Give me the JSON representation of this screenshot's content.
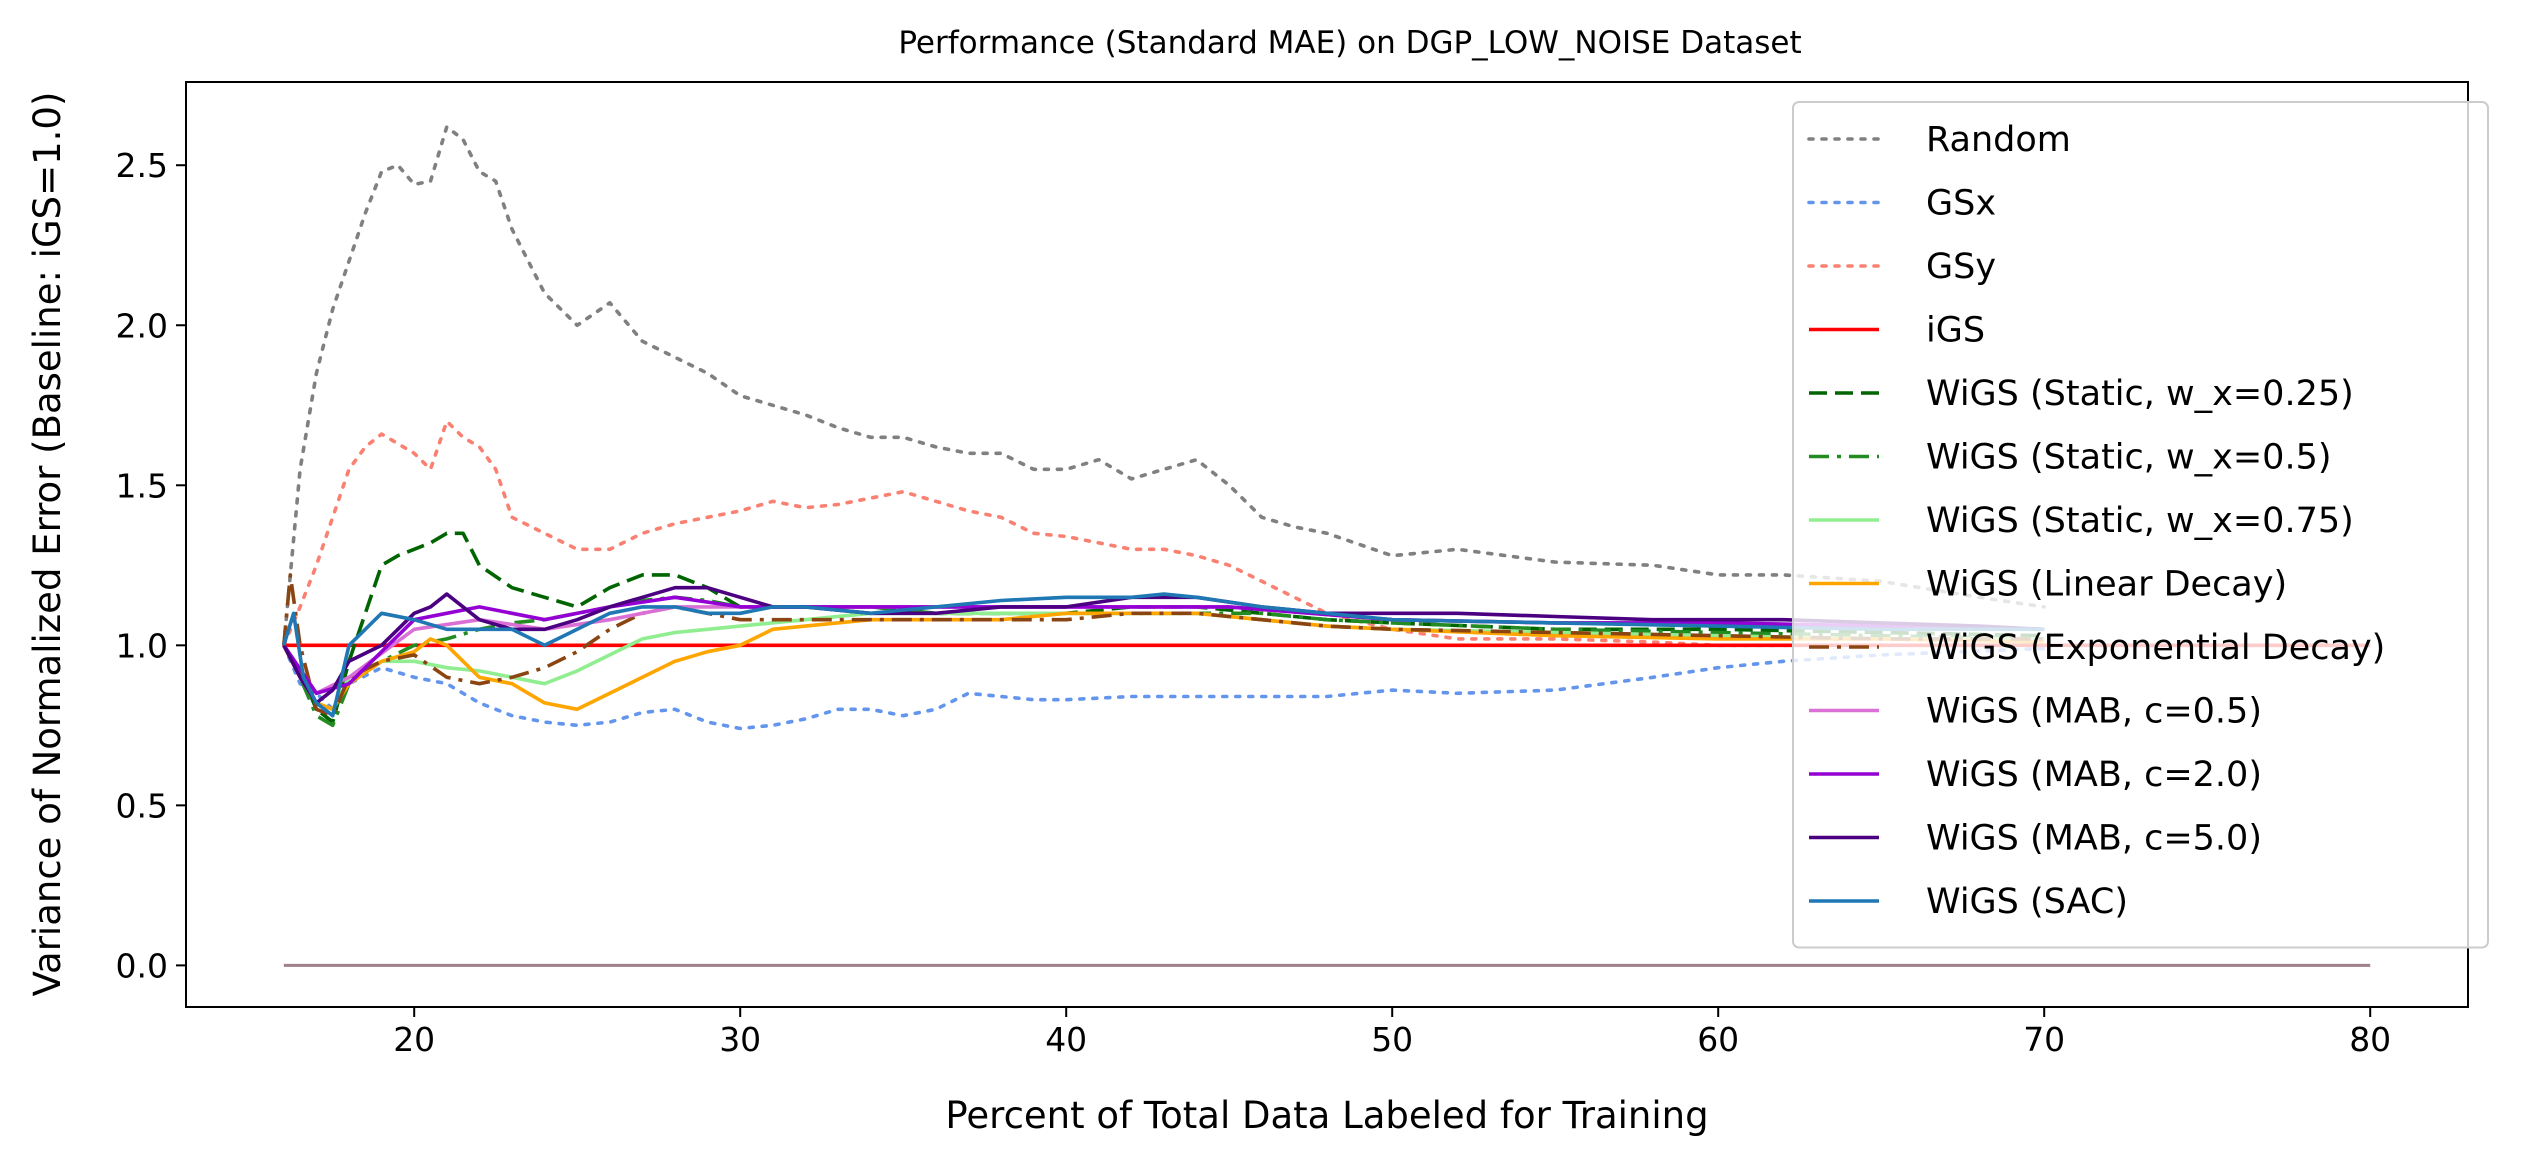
{
  "chart_data": {
    "type": "line",
    "title": "Performance (Standard MAE) on DGP_LOW_NOISE Dataset",
    "xlabel": "Percent of Total Data Labeled for Training",
    "ylabel": "Variance of Normalized Error (Baseline: iGS=1.0)",
    "xlim": [
      13,
      83
    ],
    "ylim": [
      -0.13,
      2.76
    ],
    "xticks": [
      20,
      30,
      40,
      50,
      60,
      70,
      80
    ],
    "xtick_labels": [
      "20",
      "30",
      "40",
      "50",
      "60",
      "70",
      "80"
    ],
    "yticks": [
      0.0,
      0.5,
      1.0,
      1.5,
      2.0,
      2.5
    ],
    "ytick_labels": [
      "0.0",
      "0.5",
      "1.0",
      "1.5",
      "2.0",
      "2.5"
    ],
    "grid": false,
    "legend_position": "top-right",
    "zero_line": {
      "x": [
        16,
        80
      ],
      "y": 0.0,
      "color": "#a0808a"
    },
    "series": [
      {
        "name": "Random",
        "color": "#808080",
        "dash": "dotted",
        "x": [
          16,
          16.5,
          17,
          17.5,
          18,
          18.5,
          19,
          19.5,
          20,
          20.5,
          21,
          21.5,
          22,
          22.5,
          23,
          24,
          25,
          26,
          27,
          28,
          29,
          30,
          31,
          32,
          33,
          34,
          35,
          36,
          37,
          38,
          39,
          40,
          41,
          42,
          43,
          44,
          45,
          46,
          47,
          48,
          50,
          52,
          55,
          58,
          60,
          62,
          65,
          68,
          70
        ],
        "y": [
          1.0,
          1.55,
          1.85,
          2.05,
          2.2,
          2.35,
          2.48,
          2.5,
          2.44,
          2.45,
          2.62,
          2.58,
          2.48,
          2.45,
          2.3,
          2.1,
          2.0,
          2.07,
          1.95,
          1.9,
          1.85,
          1.78,
          1.75,
          1.72,
          1.68,
          1.65,
          1.65,
          1.62,
          1.6,
          1.6,
          1.55,
          1.55,
          1.58,
          1.52,
          1.55,
          1.58,
          1.5,
          1.4,
          1.37,
          1.35,
          1.28,
          1.3,
          1.26,
          1.25,
          1.22,
          1.22,
          1.2,
          1.15,
          1.12
        ]
      },
      {
        "name": "GSx",
        "color": "#6495ed",
        "dash": "dotted",
        "x": [
          16,
          16.5,
          17,
          17.5,
          18,
          19,
          20,
          21,
          22,
          23,
          24,
          25,
          26,
          27,
          28,
          29,
          30,
          31,
          32,
          33,
          34,
          35,
          36,
          37,
          38,
          39,
          40,
          42,
          44,
          46,
          48,
          50,
          52,
          55,
          58,
          60,
          62,
          65,
          70
        ],
        "y": [
          1.0,
          0.88,
          0.85,
          0.8,
          0.88,
          0.93,
          0.9,
          0.88,
          0.82,
          0.78,
          0.76,
          0.75,
          0.76,
          0.79,
          0.8,
          0.76,
          0.74,
          0.75,
          0.77,
          0.8,
          0.8,
          0.78,
          0.8,
          0.85,
          0.84,
          0.83,
          0.83,
          0.84,
          0.84,
          0.84,
          0.84,
          0.86,
          0.85,
          0.86,
          0.9,
          0.93,
          0.95,
          0.97,
          0.99
        ]
      },
      {
        "name": "GSy",
        "color": "#fa8072",
        "dash": "dotted",
        "x": [
          16,
          16.5,
          17,
          17.5,
          18,
          18.5,
          19,
          20,
          20.5,
          21,
          21.5,
          22,
          22.5,
          23,
          24,
          25,
          26,
          27,
          28,
          29,
          30,
          31,
          32,
          33,
          34,
          35,
          36,
          37,
          38,
          39,
          40,
          41,
          42,
          43,
          44,
          45,
          46,
          47,
          48,
          50,
          52,
          55,
          58,
          60,
          62,
          65
        ],
        "y": [
          1.0,
          1.12,
          1.25,
          1.4,
          1.55,
          1.62,
          1.66,
          1.6,
          1.55,
          1.7,
          1.65,
          1.62,
          1.55,
          1.4,
          1.35,
          1.3,
          1.3,
          1.35,
          1.38,
          1.4,
          1.42,
          1.45,
          1.43,
          1.44,
          1.46,
          1.48,
          1.45,
          1.42,
          1.4,
          1.35,
          1.34,
          1.32,
          1.3,
          1.3,
          1.28,
          1.25,
          1.2,
          1.15,
          1.1,
          1.05,
          1.02,
          1.02,
          1.01,
          1.0,
          1.0,
          1.0
        ]
      },
      {
        "name": "iGS",
        "color": "#ff0000",
        "dash": "solid",
        "x": [
          16,
          80
        ],
        "y": [
          1.0,
          1.0
        ]
      },
      {
        "name": "WiGS (Static, w_x=0.25)",
        "color": "#006400",
        "dash": "dashed",
        "x": [
          16,
          16.5,
          17,
          17.5,
          18,
          18.5,
          19,
          19.5,
          20,
          20.5,
          21,
          21.5,
          22,
          23,
          24,
          25,
          26,
          27,
          28,
          29,
          30,
          32,
          34,
          36,
          38,
          40,
          42,
          44,
          46,
          48,
          50,
          55,
          60,
          65,
          70
        ],
        "y": [
          1.0,
          0.92,
          0.8,
          0.76,
          0.95,
          1.1,
          1.25,
          1.28,
          1.3,
          1.32,
          1.35,
          1.35,
          1.25,
          1.18,
          1.15,
          1.12,
          1.18,
          1.22,
          1.22,
          1.18,
          1.12,
          1.12,
          1.12,
          1.1,
          1.1,
          1.1,
          1.12,
          1.12,
          1.1,
          1.08,
          1.07,
          1.05,
          1.05,
          1.04,
          1.03
        ]
      },
      {
        "name": "WiGS (Static, w_x=0.5)",
        "color": "#228b22",
        "dash": "dashdot",
        "x": [
          16,
          16.5,
          17,
          17.5,
          18,
          19,
          20,
          21,
          22,
          23,
          24,
          25,
          26,
          27,
          28,
          29,
          30,
          32,
          34,
          36,
          38,
          40,
          42,
          44,
          46,
          48,
          50,
          55,
          60,
          65,
          70
        ],
        "y": [
          1.0,
          0.9,
          0.78,
          0.75,
          0.88,
          0.95,
          1.0,
          1.02,
          1.05,
          1.07,
          1.08,
          1.1,
          1.12,
          1.14,
          1.15,
          1.14,
          1.12,
          1.12,
          1.12,
          1.1,
          1.1,
          1.1,
          1.1,
          1.1,
          1.1,
          1.08,
          1.07,
          1.05,
          1.04,
          1.03,
          1.02
        ]
      },
      {
        "name": "WiGS (Static, w_x=0.75)",
        "color": "#90ee90",
        "dash": "solid",
        "x": [
          16,
          16.5,
          17,
          17.5,
          18,
          19,
          20,
          21,
          22,
          23,
          24,
          25,
          26,
          27,
          28,
          29,
          30,
          32,
          34,
          36,
          38,
          40,
          42,
          44,
          46,
          48,
          50,
          55,
          60,
          65,
          70
        ],
        "y": [
          1.0,
          0.9,
          0.82,
          0.8,
          0.9,
          0.95,
          0.95,
          0.93,
          0.92,
          0.9,
          0.88,
          0.92,
          0.97,
          1.02,
          1.04,
          1.05,
          1.06,
          1.08,
          1.1,
          1.1,
          1.1,
          1.1,
          1.1,
          1.1,
          1.08,
          1.06,
          1.05,
          1.04,
          1.03,
          1.02,
          1.02
        ]
      },
      {
        "name": "WiGS (Linear Decay)",
        "color": "#ffa500",
        "dash": "solid",
        "x": [
          16,
          16.5,
          17,
          17.5,
          18,
          19,
          20,
          20.5,
          21,
          21.5,
          22,
          23,
          24,
          25,
          26,
          27,
          28,
          29,
          30,
          31,
          32,
          34,
          36,
          38,
          40,
          42,
          44,
          46,
          48,
          50,
          55,
          60,
          65,
          70
        ],
        "y": [
          1.0,
          0.9,
          0.82,
          0.8,
          0.88,
          0.95,
          0.98,
          1.02,
          1.0,
          0.95,
          0.9,
          0.88,
          0.82,
          0.8,
          0.85,
          0.9,
          0.95,
          0.98,
          1.0,
          1.05,
          1.06,
          1.08,
          1.08,
          1.08,
          1.1,
          1.1,
          1.1,
          1.08,
          1.06,
          1.05,
          1.03,
          1.02,
          1.02,
          1.01
        ]
      },
      {
        "name": "WiGS (Exponential Decay)",
        "color": "#8b4513",
        "dash": "dashdot",
        "x": [
          16,
          16.2,
          16.5,
          17,
          17.5,
          18,
          19,
          20,
          21,
          22,
          23,
          24,
          25,
          26,
          27,
          28,
          29,
          30,
          32,
          34,
          36,
          38,
          40,
          42,
          44,
          46,
          48,
          50,
          55,
          60,
          65,
          70
        ],
        "y": [
          1.0,
          1.22,
          1.0,
          0.8,
          0.78,
          0.9,
          0.95,
          0.97,
          0.9,
          0.88,
          0.9,
          0.93,
          0.98,
          1.05,
          1.1,
          1.12,
          1.1,
          1.08,
          1.08,
          1.08,
          1.08,
          1.08,
          1.08,
          1.1,
          1.1,
          1.08,
          1.06,
          1.05,
          1.04,
          1.03,
          1.02,
          1.02
        ]
      },
      {
        "name": "WiGS (MAB, c=0.5)",
        "color": "#da70d6",
        "dash": "solid",
        "x": [
          16,
          17,
          18,
          20,
          22,
          24,
          26,
          28,
          30,
          35,
          40,
          45,
          50,
          55,
          60,
          65,
          70
        ],
        "y": [
          1.0,
          0.85,
          0.9,
          1.05,
          1.08,
          1.05,
          1.08,
          1.12,
          1.12,
          1.12,
          1.12,
          1.12,
          1.08,
          1.07,
          1.07,
          1.06,
          1.05
        ]
      },
      {
        "name": "WiGS (MAB, c=2.0)",
        "color": "#9400d3",
        "dash": "solid",
        "x": [
          16,
          17,
          18,
          20,
          22,
          24,
          26,
          28,
          30,
          35,
          40,
          45,
          50,
          55,
          60,
          65,
          70
        ],
        "y": [
          1.0,
          0.85,
          0.88,
          1.08,
          1.12,
          1.08,
          1.12,
          1.15,
          1.12,
          1.12,
          1.12,
          1.12,
          1.08,
          1.07,
          1.07,
          1.06,
          1.05
        ]
      },
      {
        "name": "WiGS (MAB, c=5.0)",
        "color": "#4b0082",
        "dash": "solid",
        "x": [
          16,
          16.5,
          17,
          17.5,
          18,
          19,
          20,
          20.5,
          21,
          21.5,
          22,
          23,
          24,
          25,
          26,
          27,
          28,
          29,
          30,
          31,
          32,
          34,
          36,
          38,
          40,
          42,
          43,
          44,
          46,
          48,
          50,
          52,
          55,
          58,
          60,
          62,
          65,
          68,
          70
        ],
        "y": [
          1.0,
          0.9,
          0.82,
          0.86,
          0.95,
          1.0,
          1.1,
          1.12,
          1.16,
          1.12,
          1.08,
          1.05,
          1.05,
          1.08,
          1.12,
          1.15,
          1.18,
          1.18,
          1.15,
          1.12,
          1.12,
          1.1,
          1.1,
          1.12,
          1.12,
          1.15,
          1.15,
          1.15,
          1.12,
          1.1,
          1.1,
          1.1,
          1.09,
          1.08,
          1.08,
          1.08,
          1.07,
          1.06,
          1.05
        ]
      },
      {
        "name": "WiGS (SAC)",
        "color": "#1f77b4",
        "dash": "solid",
        "x": [
          16,
          16.3,
          16.6,
          17,
          17.5,
          18,
          18.5,
          19,
          20,
          21,
          22,
          23,
          24,
          25,
          26,
          27,
          28,
          29,
          30,
          31,
          32,
          34,
          36,
          38,
          40,
          42,
          43,
          44,
          46,
          48,
          50,
          55,
          60,
          65,
          70
        ],
        "y": [
          1.0,
          1.1,
          0.9,
          0.82,
          0.78,
          1.0,
          1.05,
          1.1,
          1.08,
          1.05,
          1.05,
          1.05,
          1.0,
          1.05,
          1.1,
          1.12,
          1.12,
          1.1,
          1.1,
          1.12,
          1.12,
          1.1,
          1.12,
          1.14,
          1.15,
          1.15,
          1.16,
          1.15,
          1.12,
          1.1,
          1.08,
          1.07,
          1.06,
          1.05,
          1.05
        ]
      }
    ]
  }
}
